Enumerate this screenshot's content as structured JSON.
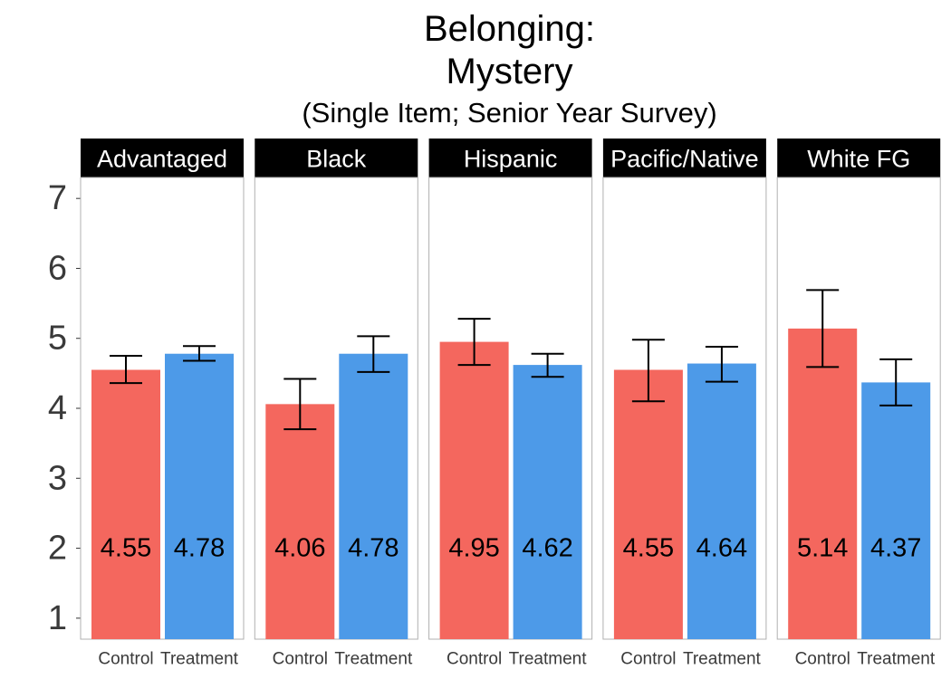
{
  "chart_data": {
    "type": "bar",
    "title_lines": [
      "Belonging:",
      "Mystery"
    ],
    "subtitle": "(Single Item; Senior Year Survey)",
    "xlabel": "",
    "ylabel": "",
    "ylim": [
      0.7,
      7.3
    ],
    "yticks": [
      "1",
      "2",
      "3",
      "4",
      "5",
      "6",
      "7"
    ],
    "categories": [
      "Control",
      "Treatment"
    ],
    "colors": {
      "Control": "#F4675E",
      "Treatment": "#4D9AE8"
    },
    "panels": [
      {
        "name": "Advantaged",
        "values": [
          4.55,
          4.78
        ],
        "labels": [
          "4.55",
          "4.78"
        ],
        "err_low": [
          4.36,
          4.68
        ],
        "err_high": [
          4.75,
          4.89
        ]
      },
      {
        "name": "Black",
        "values": [
          4.06,
          4.78
        ],
        "labels": [
          "4.06",
          "4.78"
        ],
        "err_low": [
          3.7,
          4.52
        ],
        "err_high": [
          4.42,
          5.03
        ]
      },
      {
        "name": "Hispanic",
        "values": [
          4.95,
          4.62
        ],
        "labels": [
          "4.95",
          "4.62"
        ],
        "err_low": [
          4.62,
          4.45
        ],
        "err_high": [
          5.28,
          4.78
        ]
      },
      {
        "name": "Pacific/Native",
        "values": [
          4.55,
          4.64
        ],
        "labels": [
          "4.55",
          "4.64"
        ],
        "err_low": [
          4.1,
          4.38
        ],
        "err_high": [
          4.98,
          4.88
        ]
      },
      {
        "name": "White FG",
        "values": [
          5.14,
          4.37
        ],
        "labels": [
          "5.14",
          "4.37"
        ],
        "err_low": [
          4.59,
          4.04
        ],
        "err_high": [
          5.69,
          4.7
        ]
      }
    ],
    "grid": false,
    "legend": "none"
  }
}
